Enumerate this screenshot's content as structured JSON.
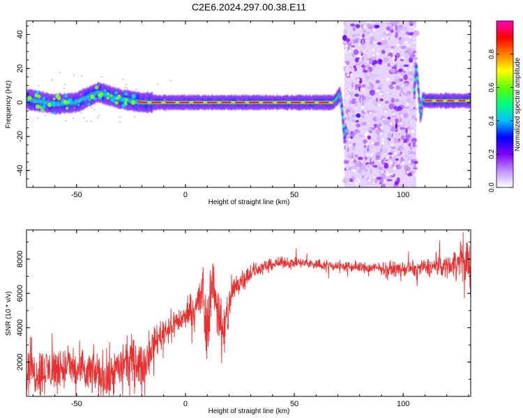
{
  "title": "C2E6.2024.297.00.38.E11",
  "chart_data": [
    {
      "type": "heatmap",
      "xlabel": "Height of straight line (km)",
      "ylabel": "Frequency (Hz)",
      "xlim": [
        -73,
        131
      ],
      "ylim": [
        -50,
        48
      ],
      "xticks": [
        -50,
        0,
        50,
        100
      ],
      "yticks": [
        -40,
        -20,
        0,
        20,
        40
      ],
      "xtick_labels": [
        "-50",
        "0",
        "50",
        "100"
      ],
      "ytick_labels": [
        "-40",
        "-20",
        "0",
        "20",
        "40"
      ],
      "colorbar": {
        "label": "Normalized spectral amplitude",
        "range": [
          0,
          1
        ],
        "ticks": [
          0,
          0.2,
          0.4,
          0.6,
          0.8
        ],
        "tick_labels": [
          "0.0",
          "0.2",
          "0.4",
          "0.6",
          "0.8"
        ],
        "colors": [
          "#ffffff",
          "#c090ff",
          "#8000ff",
          "#0000ff",
          "#00c0ff",
          "#00ff80",
          "#60ff00",
          "#ffff00",
          "#ff8000",
          "#ff0000",
          "#ff00c0"
        ]
      },
      "ridge": {
        "x": [
          -73,
          -60,
          -50,
          -40,
          -30,
          -20,
          -10,
          0,
          10,
          20,
          30,
          40,
          50,
          60,
          68,
          70,
          71,
          72,
          73,
          74,
          104,
          105,
          106,
          107,
          108,
          109,
          110,
          120,
          131
        ],
        "y": [
          2,
          -1,
          0,
          6,
          2,
          0,
          0,
          0,
          0,
          0,
          0,
          0,
          0,
          0,
          0,
          3,
          5,
          -5,
          -20,
          -15,
          -10,
          5,
          22,
          8,
          -8,
          2,
          1,
          1,
          1
        ]
      },
      "noise_band_x": [
        73,
        106
      ],
      "grid": false
    },
    {
      "type": "line",
      "xlabel": "Height of straight line (km)",
      "ylabel": "SNR (10 * v/v)",
      "xlim": [
        -73,
        131
      ],
      "ylim": [
        0,
        9700
      ],
      "xticks": [
        -50,
        0,
        50,
        100
      ],
      "yticks": [
        2000,
        4000,
        6000,
        8000
      ],
      "xtick_labels": [
        "-50",
        "0",
        "50",
        "100"
      ],
      "ytick_labels": [
        "2000",
        "4000",
        "6000",
        "8000"
      ],
      "color": "#e83030",
      "series": [
        {
          "x": [
            -73,
            -65,
            -58,
            -52,
            -47,
            -42,
            -37,
            -30,
            -25,
            -20,
            -15,
            -10,
            -5,
            0,
            3,
            6,
            8,
            9.5,
            11,
            12,
            14,
            16,
            17.5,
            18.5,
            20,
            22,
            25,
            30,
            35,
            40,
            45,
            50,
            60,
            70,
            80,
            90,
            100,
            110,
            120,
            125,
            130,
            131
          ],
          "y": [
            1300,
            1500,
            1600,
            1700,
            1300,
            1400,
            1100,
            1700,
            2200,
            1700,
            3000,
            3800,
            4300,
            4600,
            5100,
            5500,
            6000,
            4000,
            5400,
            6800,
            5600,
            4600,
            3000,
            4200,
            5300,
            6200,
            6700,
            7200,
            7500,
            7700,
            7800,
            7800,
            7700,
            7600,
            7500,
            7450,
            7400,
            7500,
            7600,
            7800,
            7900,
            7700
          ],
          "noise": [
            700,
            750,
            700,
            650,
            750,
            700,
            800,
            700,
            700,
            650,
            500,
            500,
            450,
            400,
            500,
            700,
            1100,
            1300,
            1000,
            900,
            900,
            1200,
            1200,
            900,
            700,
            500,
            400,
            300,
            220,
            180,
            170,
            170,
            170,
            170,
            180,
            200,
            230,
            280,
            350,
            500,
            800,
            900
          ]
        }
      ],
      "grid": false
    }
  ]
}
